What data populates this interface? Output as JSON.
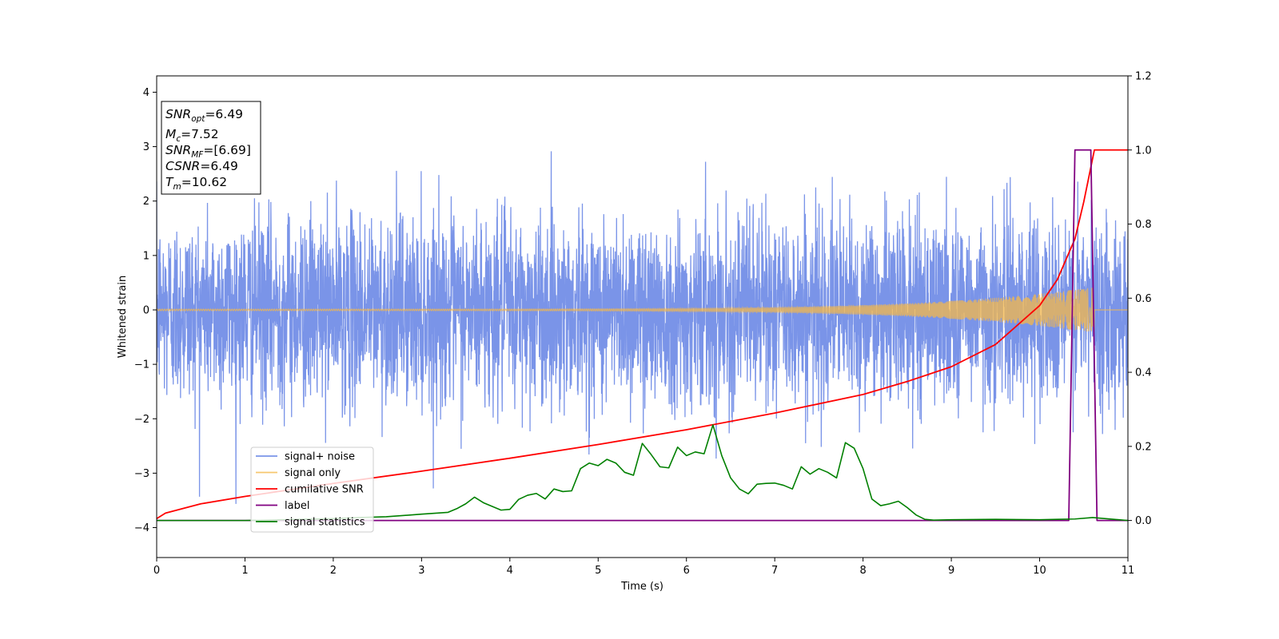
{
  "chart_data": {
    "type": "line",
    "xlabel": "Time (s)",
    "ylabel": "Whitened strain",
    "xlim": [
      0,
      11
    ],
    "ylim": [
      -4.55,
      4.3
    ],
    "y2lim": [
      -0.1,
      1.2
    ],
    "x_ticks": [
      "0",
      "1",
      "2",
      "3",
      "4",
      "5",
      "6",
      "7",
      "8",
      "9",
      "10",
      "11"
    ],
    "y_ticks": [
      "4",
      "3",
      "2",
      "1",
      "0",
      "−1",
      "−2",
      "−3",
      "−4"
    ],
    "y2_ticks": [
      "1.2",
      "1.0",
      "0.8",
      "0.6",
      "0.4",
      "0.2",
      "0.0"
    ],
    "grid": false,
    "legend_position": "lower-left",
    "colors": {
      "signal_noise": "#7a94e8",
      "signal_only": "#f5b84a",
      "cumulative_snr": "#ff0000",
      "label": "#800080",
      "signal_statistics": "#008000"
    },
    "info_box": {
      "snr_opt": {
        "base": "SNR",
        "sub": "opt",
        "value": "=6.49"
      },
      "mc": {
        "base": "M",
        "sub": "c",
        "value": "=7.52"
      },
      "snr_mf": {
        "base": "SNR",
        "sub": "MF",
        "value": "=[6.69]"
      },
      "csnr": {
        "base": "CSNR",
        "sub": "",
        "value": "=6.49"
      },
      "tm": {
        "base": "T",
        "sub": "m",
        "value": "=10.62"
      }
    },
    "series": [
      {
        "name": "signal+ noise",
        "axis": "left",
        "kind": "noise",
        "sigma": 0.85,
        "max_abs": 3.9,
        "x_end": 11
      },
      {
        "name": "signal only",
        "axis": "left",
        "kind": "chirp",
        "amp_start": 0.015,
        "amp_peak": 0.42,
        "x_merge": 10.62
      },
      {
        "name": "cumilative SNR",
        "axis": "right",
        "x": [
          0,
          0.1,
          0.5,
          1,
          2,
          3,
          4,
          5,
          6,
          7,
          8,
          8.5,
          9,
          9.5,
          10,
          10.2,
          10.4,
          10.5,
          10.62,
          11
        ],
        "y": [
          0.005,
          0.02,
          0.045,
          0.065,
          0.1,
          0.133,
          0.168,
          0.205,
          0.245,
          0.29,
          0.34,
          0.375,
          0.415,
          0.475,
          0.58,
          0.65,
          0.76,
          0.86,
          1.0,
          1.0
        ]
      },
      {
        "name": "label",
        "axis": "right",
        "x": [
          0,
          10.33,
          10.4,
          10.58,
          10.65,
          11
        ],
        "y": [
          0,
          0,
          1.0,
          1.0,
          0,
          0
        ]
      },
      {
        "name": "signal statistics",
        "axis": "right",
        "x": [
          0,
          1,
          2,
          2.3,
          2.6,
          3,
          3.3,
          3.4,
          3.5,
          3.6,
          3.7,
          3.8,
          3.9,
          4,
          4.1,
          4.2,
          4.3,
          4.4,
          4.5,
          4.6,
          4.7,
          4.8,
          4.9,
          5,
          5.1,
          5.2,
          5.3,
          5.4,
          5.5,
          5.6,
          5.7,
          5.8,
          5.9,
          6,
          6.1,
          6.2,
          6.3,
          6.4,
          6.5,
          6.6,
          6.7,
          6.8,
          6.9,
          7,
          7.1,
          7.2,
          7.3,
          7.4,
          7.5,
          7.6,
          7.7,
          7.8,
          7.9,
          8,
          8.1,
          8.2,
          8.3,
          8.4,
          8.5,
          8.6,
          8.7,
          8.8,
          9,
          9.5,
          10,
          10.2,
          10.4,
          10.6,
          11
        ],
        "y": [
          0.0,
          0.0,
          0.005,
          0.008,
          0.01,
          0.017,
          0.022,
          0.032,
          0.045,
          0.063,
          0.048,
          0.038,
          0.028,
          0.03,
          0.057,
          0.068,
          0.073,
          0.058,
          0.085,
          0.078,
          0.08,
          0.14,
          0.155,
          0.148,
          0.165,
          0.155,
          0.13,
          0.122,
          0.208,
          0.178,
          0.145,
          0.142,
          0.198,
          0.175,
          0.185,
          0.18,
          0.258,
          0.175,
          0.115,
          0.085,
          0.072,
          0.098,
          0.1,
          0.101,
          0.095,
          0.085,
          0.145,
          0.125,
          0.14,
          0.13,
          0.115,
          0.21,
          0.195,
          0.14,
          0.058,
          0.04,
          0.045,
          0.052,
          0.035,
          0.015,
          0.003,
          0.001,
          0.002,
          0.003,
          0.002,
          0.003,
          0.004,
          0.008,
          0.0
        ]
      }
    ]
  }
}
